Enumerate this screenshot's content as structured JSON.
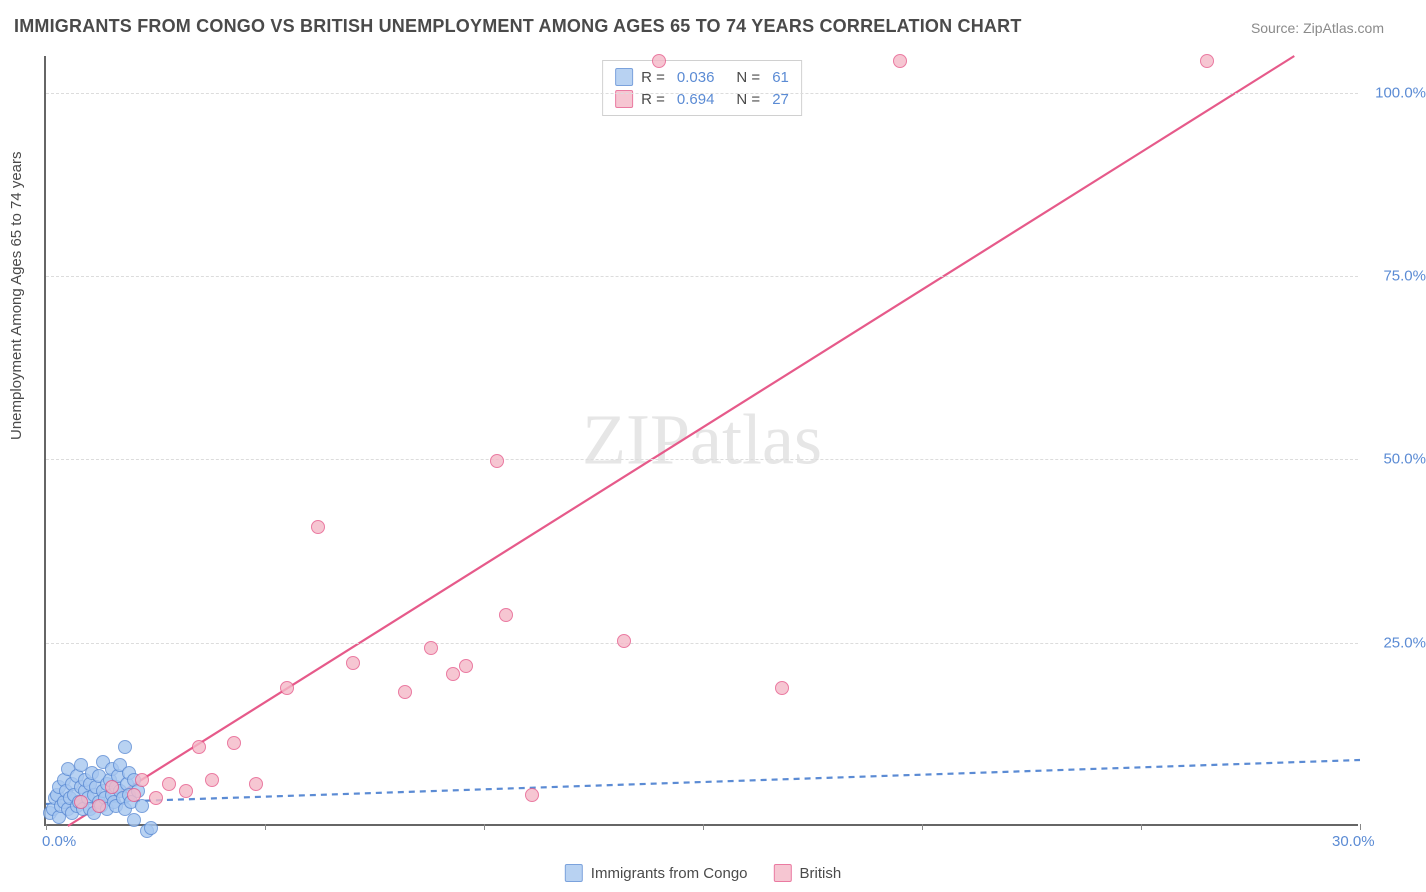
{
  "title": "IMMIGRANTS FROM CONGO VS BRITISH UNEMPLOYMENT AMONG AGES 65 TO 74 YEARS CORRELATION CHART",
  "source_prefix": "Source: ",
  "source": "ZipAtlas.com",
  "ylabel": "Unemployment Among Ages 65 to 74 years",
  "watermark": "ZIPatlas",
  "chart": {
    "type": "scatter",
    "xlim": [
      0,
      30
    ],
    "ylim": [
      0,
      105
    ],
    "x_tick_positions": [
      0,
      5,
      10,
      15,
      20,
      25,
      30
    ],
    "x_tick_labels": {
      "0": "0.0%",
      "30": "30.0%"
    },
    "y_ticks": [
      25,
      50,
      75,
      100
    ],
    "y_tick_labels": [
      "25.0%",
      "50.0%",
      "75.0%",
      "100.0%"
    ],
    "grid_color": "#dcdcdc",
    "background_color": "#ffffff",
    "axis_color": "#666666",
    "tick_label_color": "#5b8bd4",
    "marker_radius": 7,
    "marker_stroke_width": 1.4,
    "line_width": 2.2
  },
  "series": [
    {
      "name": "Immigrants from Congo",
      "label": "Immigrants from Congo",
      "fill_color": "#a7c7f0",
      "fill_opacity": 0.45,
      "stroke_color": "#5b8bd4",
      "line_color": "#5b8bd4",
      "line_dash": "6,5",
      "R": "0.036",
      "N": "61",
      "trend": {
        "x1": 0,
        "y1": 3.0,
        "x2": 30,
        "y2": 9.0
      },
      "points": [
        [
          0.1,
          1.5
        ],
        [
          0.15,
          2.0
        ],
        [
          0.2,
          3.5
        ],
        [
          0.25,
          4.0
        ],
        [
          0.3,
          1.0
        ],
        [
          0.3,
          5.0
        ],
        [
          0.35,
          2.5
        ],
        [
          0.4,
          6.0
        ],
        [
          0.4,
          3.0
        ],
        [
          0.45,
          4.5
        ],
        [
          0.5,
          2.0
        ],
        [
          0.5,
          7.5
        ],
        [
          0.55,
          3.5
        ],
        [
          0.6,
          5.5
        ],
        [
          0.6,
          1.5
        ],
        [
          0.65,
          4.0
        ],
        [
          0.7,
          6.5
        ],
        [
          0.7,
          2.5
        ],
        [
          0.75,
          3.0
        ],
        [
          0.8,
          5.0
        ],
        [
          0.8,
          8.0
        ],
        [
          0.85,
          2.0
        ],
        [
          0.9,
          4.5
        ],
        [
          0.9,
          6.0
        ],
        [
          0.95,
          3.5
        ],
        [
          1.0,
          5.5
        ],
        [
          1.0,
          2.0
        ],
        [
          1.05,
          7.0
        ],
        [
          1.1,
          4.0
        ],
        [
          1.1,
          1.5
        ],
        [
          1.15,
          5.0
        ],
        [
          1.2,
          3.0
        ],
        [
          1.2,
          6.5
        ],
        [
          1.25,
          2.5
        ],
        [
          1.3,
          4.5
        ],
        [
          1.3,
          8.5
        ],
        [
          1.35,
          3.5
        ],
        [
          1.4,
          5.5
        ],
        [
          1.4,
          2.0
        ],
        [
          1.45,
          6.0
        ],
        [
          1.5,
          4.0
        ],
        [
          1.5,
          7.5
        ],
        [
          1.55,
          3.0
        ],
        [
          1.6,
          5.0
        ],
        [
          1.6,
          2.5
        ],
        [
          1.65,
          6.5
        ],
        [
          1.7,
          4.5
        ],
        [
          1.7,
          8.0
        ],
        [
          1.75,
          3.5
        ],
        [
          1.8,
          10.5
        ],
        [
          1.8,
          2.0
        ],
        [
          1.85,
          5.5
        ],
        [
          1.9,
          4.0
        ],
        [
          1.9,
          7.0
        ],
        [
          1.95,
          3.0
        ],
        [
          2.0,
          6.0
        ],
        [
          2.0,
          0.5
        ],
        [
          2.1,
          4.5
        ],
        [
          2.2,
          2.5
        ],
        [
          2.3,
          -1.0
        ],
        [
          2.4,
          -0.5
        ]
      ]
    },
    {
      "name": "British",
      "label": "British",
      "fill_color": "#f5b8c8",
      "fill_opacity": 0.45,
      "stroke_color": "#e65a8a",
      "line_color": "#e65a8a",
      "line_dash": "",
      "R": "0.694",
      "N": "27",
      "trend": {
        "x1": 0.5,
        "y1": 0,
        "x2": 28.5,
        "y2": 105
      },
      "points": [
        [
          0.8,
          3.0
        ],
        [
          1.2,
          2.5
        ],
        [
          1.5,
          5.0
        ],
        [
          2.0,
          4.0
        ],
        [
          2.2,
          6.0
        ],
        [
          2.5,
          3.5
        ],
        [
          2.8,
          5.5
        ],
        [
          3.2,
          4.5
        ],
        [
          3.5,
          10.5
        ],
        [
          3.8,
          6.0
        ],
        [
          4.3,
          11.0
        ],
        [
          4.8,
          5.5
        ],
        [
          5.5,
          18.5
        ],
        [
          6.2,
          40.5
        ],
        [
          7.0,
          22.0
        ],
        [
          8.2,
          18.0
        ],
        [
          8.8,
          24.0
        ],
        [
          9.3,
          20.5
        ],
        [
          9.6,
          21.5
        ],
        [
          10.3,
          49.5
        ],
        [
          10.5,
          28.5
        ],
        [
          11.1,
          4.0
        ],
        [
          13.2,
          25.0
        ],
        [
          14.0,
          104.0
        ],
        [
          16.8,
          18.5
        ],
        [
          19.5,
          104.0
        ],
        [
          26.5,
          104.0
        ]
      ]
    }
  ],
  "legend_top": {
    "r_label": "R =",
    "n_label": "N ="
  },
  "legend_bottom_items": [
    "Immigrants from Congo",
    "British"
  ]
}
